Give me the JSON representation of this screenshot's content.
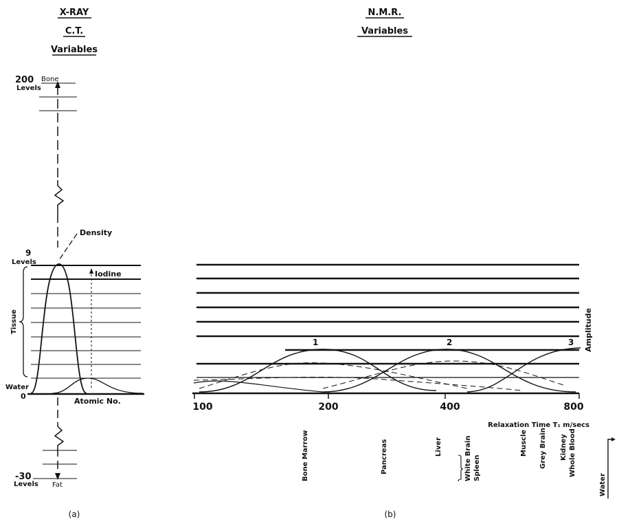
{
  "panel_a": {
    "heading": [
      "X-RAY",
      "C.T.",
      "Variables"
    ],
    "label_200": "200",
    "label_bone": "Bone",
    "label_levels_top": "Levels",
    "label_9": "9",
    "label_levels_mid": "Levels",
    "label_density": "Density",
    "label_iodine": "Iodine",
    "label_tissue": "Tissue",
    "label_water": "Water",
    "label_zero": "0",
    "label_atomic": "Atomic No.",
    "label_minus30": "-30",
    "label_levels_bottom": "Levels",
    "label_fat": "Fat",
    "caption": "(a)"
  },
  "panel_b": {
    "heading": [
      "N.M.R.",
      "Variables"
    ],
    "amplitude_label": "Amplitude",
    "xaxis_label": "Relaxation Time T₁ m/secs",
    "ticks": [
      "100",
      "200",
      "400",
      "800"
    ],
    "peaks": [
      "1",
      "2",
      "3"
    ],
    "tissues": [
      "Bone Marrow",
      "Pancreas",
      "Liver",
      "White Brain",
      "Spleen",
      "Muscle",
      "Grey Brain",
      "Kidney",
      "Whole Blood",
      "Water"
    ],
    "caption": "(b)"
  },
  "colors": {
    "ink": "#111111",
    "background": "#ffffff"
  }
}
